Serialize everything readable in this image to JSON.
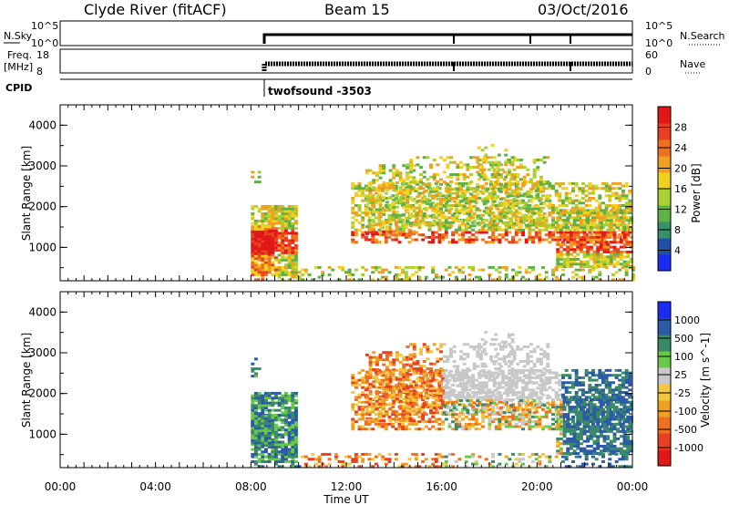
{
  "header": {
    "station": "Clyde River (fitACF)",
    "beam": "Beam 15",
    "date": "03/Oct/2016"
  },
  "panels": {
    "nsky": {
      "label": "N.Sky",
      "ticks": [
        "10^5",
        "10^0"
      ],
      "right_label": "N.Search",
      "right_ticks": [
        "10^5",
        "10^0"
      ]
    },
    "freq": {
      "label_line1": "Freq.",
      "label_line2": "[MHz]",
      "ticks": [
        "18",
        "8"
      ],
      "right_label": "Nave",
      "right_ticks": [
        "60",
        "0"
      ]
    },
    "cpid": {
      "label": "CPID",
      "program": "twofsound -3503"
    }
  },
  "power": {
    "ylabel": "Slant Range [km]",
    "yticks": [
      "4000",
      "3000",
      "2000",
      "1000"
    ],
    "colorbar": {
      "label": "Power [dB]",
      "ticks": [
        "28",
        "24",
        "20",
        "16",
        "12",
        "8",
        "4"
      ],
      "colors": [
        "#1a2cf0",
        "#2050a8",
        "#3a9068",
        "#60b048",
        "#a8d030",
        "#f0d020",
        "#f0a020",
        "#f07020",
        "#e84020",
        "#e01818"
      ]
    }
  },
  "velocity": {
    "ylabel": "Slant Range [km]",
    "yticks": [
      "4000",
      "3000",
      "2000",
      "1000"
    ],
    "colorbar": {
      "label": "Velocity [m s^-1]",
      "ticks": [
        "1000",
        "500",
        "100",
        "25",
        "-25",
        "-100",
        "-500",
        "-1000"
      ],
      "colors": [
        "#e01818",
        "#e84020",
        "#f07020",
        "#f0a020",
        "#f0c840",
        "#c8c8c8",
        "#68c848",
        "#3a8a68",
        "#2c5aa8",
        "#1a2cf0"
      ]
    }
  },
  "xaxis": {
    "label": "Time UT",
    "ticks": [
      "00:00",
      "04:00",
      "08:00",
      "12:00",
      "16:00",
      "20:00",
      "00:00"
    ]
  },
  "chart_data": {
    "type": "heatmap",
    "title": "Clyde River (fitACF)",
    "x_range_hours_ut": [
      0,
      24
    ],
    "y_range_km": [
      180,
      4500
    ],
    "xlabel": "Time UT",
    "ylabel": "Slant Range [km]",
    "data_start_ut": "08:00",
    "power_db_range": [
      0,
      30
    ],
    "velocity_range": [
      -1000,
      1000
    ]
  }
}
